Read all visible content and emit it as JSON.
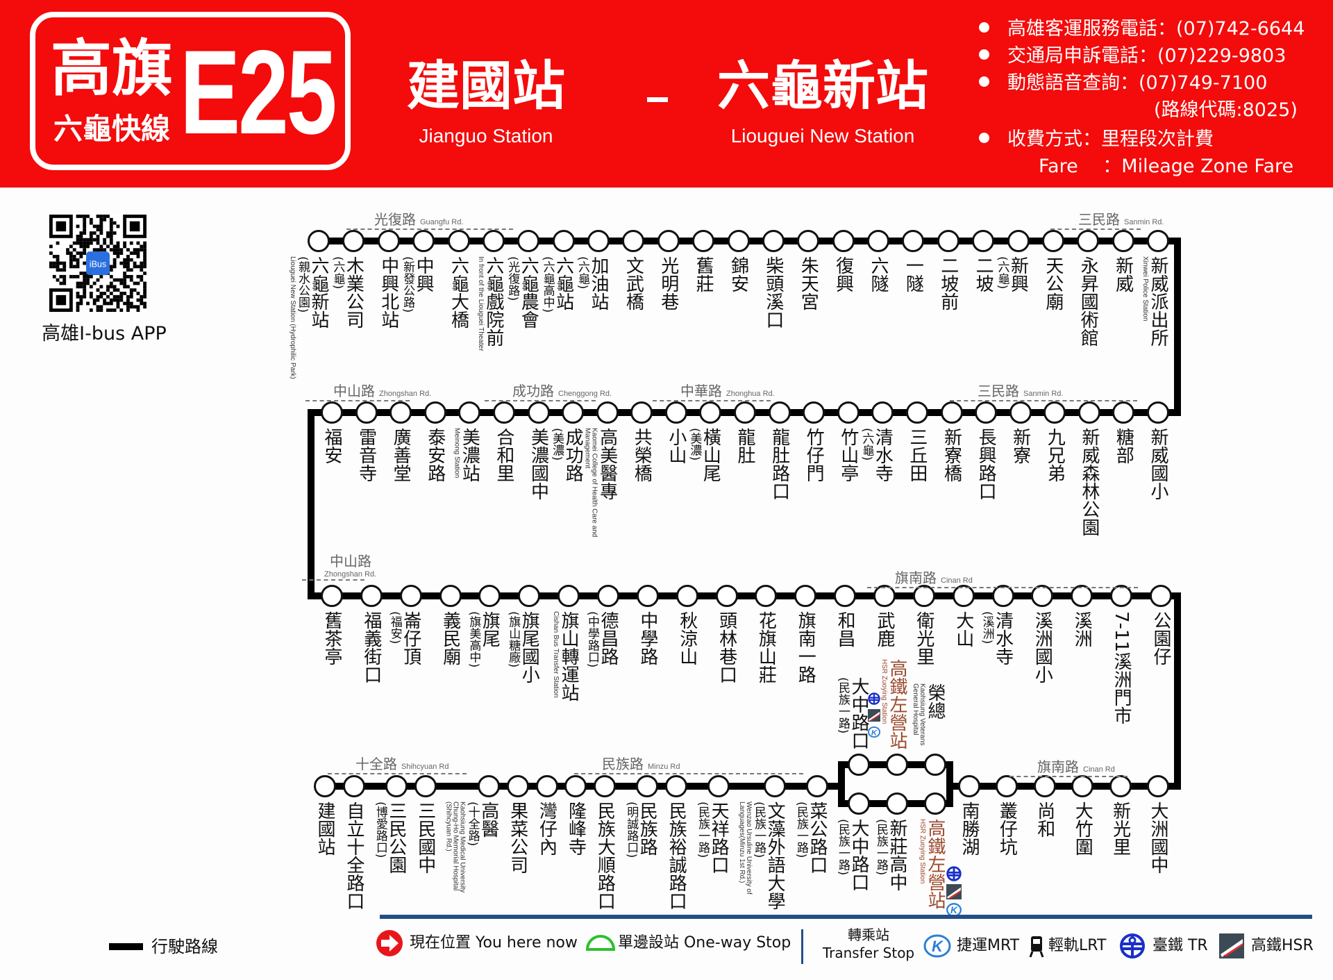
{
  "header": {
    "logo": {
      "line1": "高旗",
      "line2": "六龜快線",
      "route_no": "E25"
    },
    "origin": {
      "zh": "建國站",
      "en": "Jianguo Station"
    },
    "separator": "-",
    "destination": {
      "zh": "六龜新站",
      "en": "Liouguei New Station"
    },
    "info": [
      "高雄客運服務電話：(07)742-6644",
      "交通局申訴電話：(07)229-9803",
      "動態語音查詢：(07)749-7100",
      "(路線代碼:8025)",
      "收費方式：里程段次計費",
      "Fare　 ：Mileage Zone Fare"
    ],
    "brand_color": "#f40b0b"
  },
  "qr": {
    "label": "高雄I-bus APP",
    "badge": "iBus"
  },
  "route": {
    "row1": {
      "roads": [
        {
          "zh": "光復路",
          "en": "Guangfu Rd."
        },
        {
          "zh": "三民路",
          "en": "Sanmin Rd."
        }
      ],
      "stations": [
        {
          "name": "六龜新站",
          "sub": "(親水公園)",
          "en": "Liouguei New Station (Hydrophilic Park)"
        },
        {
          "name": "木業公司",
          "sub": "(六龜)"
        },
        {
          "name": "中興北站"
        },
        {
          "name": "中興",
          "sub": "(新發公路)"
        },
        {
          "name": "六龜大橋"
        },
        {
          "name": "六龜戲院前",
          "en": "In front of the Liouguei Theater"
        },
        {
          "name": "六龜農會",
          "sub": "(光復路)"
        },
        {
          "name": "六龜站",
          "sub": "(六龜高中)"
        },
        {
          "name": "加油站",
          "sub": "(六龜)"
        },
        {
          "name": "文武橋"
        },
        {
          "name": "光明巷"
        },
        {
          "name": "舊莊"
        },
        {
          "name": "錦安"
        },
        {
          "name": "柴頭溪口"
        },
        {
          "name": "朱天宮"
        },
        {
          "name": "復興"
        },
        {
          "name": "六隧"
        },
        {
          "name": "一隧"
        },
        {
          "name": "二坡前"
        },
        {
          "name": "二坡"
        },
        {
          "name": "新興",
          "sub": "(六龜)"
        },
        {
          "name": "天公廟"
        },
        {
          "name": "永昇國術館"
        },
        {
          "name": "新威"
        },
        {
          "name": "新威派出所",
          "en": "Xinwei Police Station"
        }
      ]
    },
    "row2": {
      "roads": [
        {
          "zh": "中山路",
          "en": "Zhongshan Rd."
        },
        {
          "zh": "成功路",
          "en": "Chenggong Rd."
        },
        {
          "zh": "中華路",
          "en": "Zhonghua Rd."
        },
        {
          "zh": "三民路",
          "en": "Sanmin Rd."
        }
      ],
      "stations": [
        {
          "name": "福安"
        },
        {
          "name": "雷音寺"
        },
        {
          "name": "廣善堂"
        },
        {
          "name": "泰安路"
        },
        {
          "name": "美濃站",
          "en": "Meinong Station"
        },
        {
          "name": "合和里"
        },
        {
          "name": "美濃國中"
        },
        {
          "name": "成功路",
          "sub": "(美濃)"
        },
        {
          "name": "高美醫專",
          "en": "Kaomei College of Health Care and Management"
        },
        {
          "name": "共榮橋"
        },
        {
          "name": "小山"
        },
        {
          "name": "橫山尾",
          "sub": "(美濃)"
        },
        {
          "name": "龍肚"
        },
        {
          "name": "龍肚路口"
        },
        {
          "name": "竹仔門"
        },
        {
          "name": "竹山亭"
        },
        {
          "name": "清水寺",
          "sub": "(六龜)"
        },
        {
          "name": "三丘田"
        },
        {
          "name": "新寮橋"
        },
        {
          "name": "長興路口"
        },
        {
          "name": "新寮"
        },
        {
          "name": "九兄弟"
        },
        {
          "name": "新威森林公園"
        },
        {
          "name": "糖部"
        },
        {
          "name": "新威國小"
        }
      ]
    },
    "row3": {
      "roads": [
        {
          "zh": "中山路",
          "en": "Zhongshan Rd."
        },
        {
          "zh": "旗南路",
          "en": "Cinan Rd"
        }
      ],
      "stations": [
        {
          "name": "舊茶亭"
        },
        {
          "name": "福義街口"
        },
        {
          "name": "崙仔頂",
          "sub": "(福安)"
        },
        {
          "name": "義民廟"
        },
        {
          "name": "旗尾",
          "sub": "(旗美高中)"
        },
        {
          "name": "旗尾國小",
          "sub": "(旗山糖廠)"
        },
        {
          "name": "旗山轉運站",
          "en": "Cishan Bus Transfer Station"
        },
        {
          "name": "德昌路",
          "sub": "(中學路口)"
        },
        {
          "name": "中學路"
        },
        {
          "name": "秋涼山"
        },
        {
          "name": "頭林巷口"
        },
        {
          "name": "花旗山莊"
        },
        {
          "name": "旗南一路"
        },
        {
          "name": "和昌"
        },
        {
          "name": "武鹿"
        },
        {
          "name": "衛光里"
        },
        {
          "name": "大山"
        },
        {
          "name": "清水寺",
          "sub": "(溪洲)"
        },
        {
          "name": "溪洲國小"
        },
        {
          "name": "溪洲"
        },
        {
          "name": "7-11溪洲門市"
        },
        {
          "name": "公園仔"
        }
      ]
    },
    "row4": {
      "roads": [
        {
          "zh": "十全路",
          "en": "Shihcyuan Rd"
        },
        {
          "zh": "民族路",
          "en": "Minzu Rd"
        },
        {
          "zh": "旗南路",
          "en": "Cinan Rd"
        }
      ],
      "stations_left": [
        {
          "name": "建國站"
        },
        {
          "name": "自立十全路口"
        },
        {
          "name": "三民公園",
          "sub": "(博愛路口)"
        },
        {
          "name": "三民國中"
        },
        {
          "name": "高醫",
          "sub": "(十全路)",
          "en": "Kaohsiung Medical University Chung-Ho Memorial Hospital (Shihcyuan Rd.)"
        },
        {
          "name": "果菜公司"
        },
        {
          "name": "灣仔內"
        },
        {
          "name": "隆峰寺"
        },
        {
          "name": "民族大順路口"
        },
        {
          "name": "民族路",
          "sub": "(明誠路口)"
        },
        {
          "name": "民族裕誠路口"
        },
        {
          "name": "天祥路口",
          "sub": "(民族一路)"
        },
        {
          "name": "文藻外語大學",
          "sub": "(民族一路)",
          "en": "Wenzao Ursuline University of Languages(Minzu 1st Rd.)"
        },
        {
          "name": "菜公路口",
          "sub": "(民族一路)"
        }
      ],
      "loop_bottom": [
        {
          "name": "大中路口",
          "sub": "(民族一路)"
        },
        {
          "name": "新莊高中",
          "sub": "(民族一路)"
        },
        {
          "name": "高鐵左營站",
          "en": "HSR Zuoying Station",
          "transfer": [
            "tr",
            "hsr",
            "mrt"
          ]
        }
      ],
      "loop_top": [
        {
          "name": "大中路口",
          "sub": "(民族一路)"
        },
        {
          "name": "高鐵左營站",
          "en": "HSR Zuoying Station",
          "transfer": [
            "tr",
            "hsr",
            "mrt"
          ]
        },
        {
          "name": "榮總",
          "en": "Kaohsiung Veterans General Hospital"
        }
      ],
      "stations_right": [
        {
          "name": "南勝湖"
        },
        {
          "name": "叢仔坑"
        },
        {
          "name": "尚和"
        },
        {
          "name": "大竹圍"
        },
        {
          "name": "新光里"
        },
        {
          "name": "大洲國中"
        }
      ]
    },
    "hsr_label_color": "#9c4a2e"
  },
  "legend": {
    "route_line": "行駛路線",
    "you_are_here": "現在位置 You here now",
    "one_way": "單邊設站 One-way Stop",
    "transfer_zh": "轉乘站",
    "transfer_en": "Transfer Stop",
    "mrt": "捷運MRT",
    "lrt": "輕軌LRT",
    "tr": "臺鐵 TR",
    "hsr": "高鐵HSR",
    "colors": {
      "you_are_here": "#e8161b",
      "one_way": "#2ec02e",
      "divider": "#234e86",
      "mrt": "#2a7fd6",
      "tr": "#1a2fc8"
    }
  }
}
